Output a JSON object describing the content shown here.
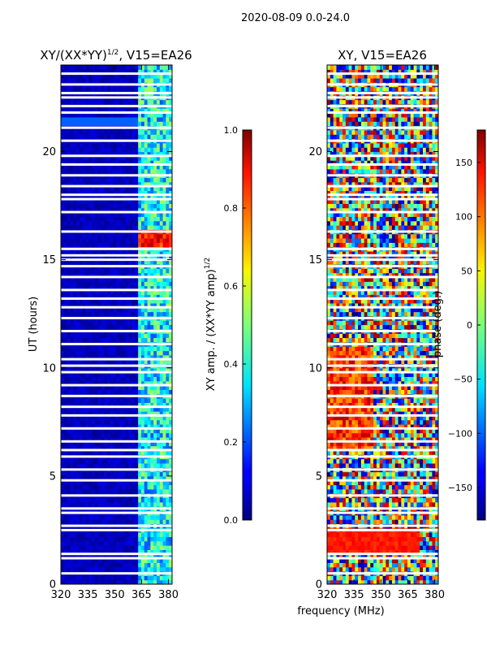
{
  "suptitle": "2020-08-09 0.0-24.0",
  "chart_data": [
    {
      "type": "heatmap",
      "title": "XY/(XX*YY)",
      "title_sup": "1/2",
      "title_suffix": ", V15=EA26",
      "xlabel": "",
      "ylabel": "UT (hours)",
      "xlim": [
        320,
        382
      ],
      "ylim": [
        0,
        24
      ],
      "xticks": [
        "320",
        "335",
        "350",
        "365",
        "380"
      ],
      "xtick_values": [
        320,
        335,
        350,
        365,
        380
      ],
      "yticks": [
        "0",
        "5",
        "10",
        "15",
        "20"
      ],
      "ytick_values": [
        0,
        5,
        10,
        15,
        20
      ],
      "colorbar": {
        "label": "XY amp. / (XX*YY amp)",
        "label_sup": "1/2",
        "range": [
          0.0,
          1.0
        ],
        "ticks": [
          "0.0",
          "0.2",
          "0.4",
          "0.6",
          "0.8",
          "1.0"
        ],
        "tick_values": [
          0.0,
          0.2,
          0.4,
          0.6,
          0.8,
          1.0
        ]
      },
      "blank_rows_ut": [
        0.5,
        1.2,
        1.4,
        2.5,
        2.7,
        3.3,
        3.5,
        4.1,
        4.8,
        5.3,
        5.9,
        6.2,
        6.6,
        7.2,
        7.8,
        8.2,
        8.7,
        9.2,
        9.8,
        10.1,
        10.4,
        11.1,
        11.7,
        12.3,
        12.8,
        13.2,
        13.6,
        14.2,
        14.7,
        15.0,
        15.2,
        15.5,
        16.3,
        17.2,
        17.8,
        18.0,
        18.4,
        18.9,
        19.4,
        19.8,
        20.5,
        21.1,
        21.8,
        22.1,
        22.5,
        22.7,
        23.1,
        23.6
      ],
      "strong_band": {
        "ut": [
          15.6,
          16.2
        ],
        "x": [
          363,
          382
        ],
        "value": 0.85
      }
    },
    {
      "type": "heatmap",
      "title": "XY, V15=EA26",
      "xlabel": "frequency (MHz)",
      "ylabel": "",
      "xlim": [
        320,
        382
      ],
      "ylim": [
        0,
        24
      ],
      "xticks": [
        "320",
        "335",
        "350",
        "365",
        "380"
      ],
      "xtick_values": [
        320,
        335,
        350,
        365,
        380
      ],
      "yticks": [
        "0",
        "5",
        "10",
        "15",
        "20"
      ],
      "ytick_values": [
        0,
        5,
        10,
        15,
        20
      ],
      "colorbar": {
        "label": "phase (deg.)",
        "range": [
          -180,
          180
        ],
        "ticks": [
          "−150",
          "−100",
          "−50",
          "0",
          "50",
          "100",
          "150"
        ],
        "tick_values": [
          -150,
          -100,
          -50,
          0,
          50,
          100,
          150
        ]
      },
      "blank_rows_ut": [
        0.5,
        1.2,
        1.4,
        2.5,
        2.7,
        3.3,
        3.5,
        4.1,
        4.8,
        5.3,
        5.9,
        6.2,
        6.6,
        7.2,
        7.8,
        8.2,
        8.7,
        9.2,
        9.8,
        10.1,
        10.4,
        11.1,
        11.7,
        12.3,
        12.8,
        13.2,
        13.6,
        14.2,
        14.7,
        15.0,
        15.2,
        15.5,
        16.3,
        17.2,
        17.8,
        18.0,
        18.4,
        18.9,
        19.4,
        19.8,
        20.5,
        21.1,
        21.8,
        22.1,
        22.5,
        22.7,
        23.1,
        23.6
      ],
      "orange_band": {
        "ut": [
          1.3,
          2.5
        ],
        "x": [
          320,
          370
        ],
        "value": 140
      }
    }
  ]
}
